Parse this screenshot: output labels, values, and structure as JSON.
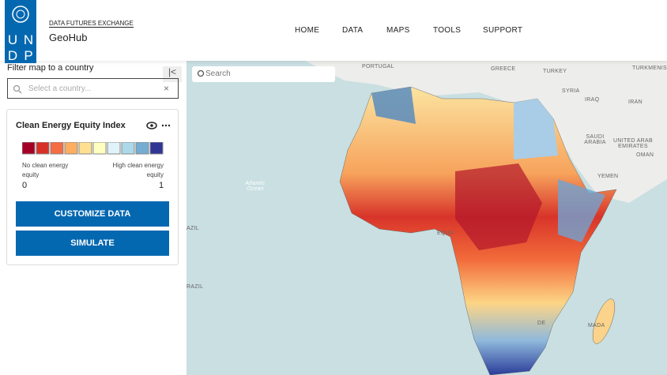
{
  "header": {
    "logo": [
      "U",
      "N",
      "D",
      "P"
    ],
    "overline": "DATA FUTURES EXCHANGE",
    "title": "GeoHub",
    "nav": [
      "HOME",
      "DATA",
      "MAPS",
      "TOOLS",
      "SUPPORT"
    ]
  },
  "sidebar": {
    "filter_label": "Filter map to a country",
    "filter_placeholder": "Select a country...",
    "layer": {
      "title": "Clean Energy Equity Index",
      "low_label": "No clean energy equity",
      "high_label": "High clean energy equity",
      "min": "0",
      "max": "1"
    },
    "buttons": [
      "CUSTOMIZE DATA",
      "SIMULATE"
    ]
  },
  "map": {
    "search_placeholder": "Search",
    "labels": [
      "PORTUGAL",
      "GREECE",
      "TURKEY",
      "TURKMENIST",
      "SYRIA",
      "IRAQ",
      "IRAN",
      "SAUDI ARABIA",
      "UNITED ARAB EMIRATES",
      "OMAN",
      "YEMEN",
      "Atlantic Ocean",
      "AZIL",
      "RAZIL",
      "EQUA",
      "MADA",
      "DE"
    ]
  }
}
